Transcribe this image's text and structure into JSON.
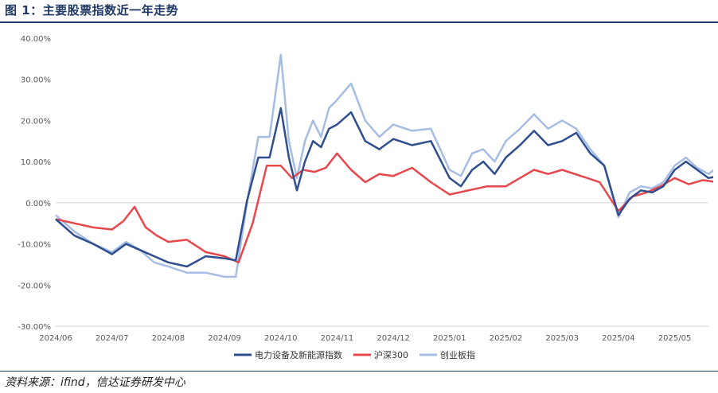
{
  "figure": {
    "title": "图 1：主要股票指数近一年走势",
    "source": "资料来源：ifind，信达证券研发中心"
  },
  "colors": {
    "title": "#1f3864",
    "power_index": "#2e4e8f",
    "hs300": "#e8474c",
    "chinext": "#a6bde3",
    "axis": "#d0d0d0",
    "tick_text": "#595959"
  },
  "chart_data": {
    "type": "line",
    "title": "",
    "xlabel": "",
    "ylabel": "",
    "ylim": [
      -30,
      40
    ],
    "yticks": [
      -30,
      -20,
      -10,
      0,
      10,
      20,
      30,
      40
    ],
    "ytick_labels": [
      "-30.00%",
      "-20.00%",
      "-10.00%",
      "0.00%",
      "10.00%",
      "20.00%",
      "30.00%",
      "40.00%"
    ],
    "grid": false,
    "legend_position": "bottom",
    "x_labels": [
      "2024/06",
      "2024/07",
      "2024/08",
      "2024/09",
      "2024/10",
      "2024/11",
      "2024/12",
      "2025/01",
      "2025/02",
      "2025/03",
      "2025/04",
      "2025/05"
    ],
    "x_range": [
      "2024/06",
      "2025/05"
    ],
    "series": [
      {
        "name": "电力设备及新能源指数",
        "key": "power_index",
        "points": [
          [
            "2024/06",
            -4.0
          ],
          [
            "2024/06",
            -8.0
          ],
          [
            "2024/06",
            -10.0
          ],
          [
            "2024/07",
            -12.5
          ],
          [
            "2024/07",
            -10.0
          ],
          [
            "2024/07",
            -11.5
          ],
          [
            "2024/07",
            -13.0
          ],
          [
            "2024/08",
            -14.5
          ],
          [
            "2024/08",
            -15.5
          ],
          [
            "2024/08",
            -13.0
          ],
          [
            "2024/09",
            -13.5
          ],
          [
            "2024/09",
            -14.0
          ],
          [
            "2024/09",
            0.5
          ],
          [
            "2024/09",
            11.0
          ],
          [
            "2024/09",
            11.0
          ],
          [
            "2024/10",
            23.0
          ],
          [
            "2024/10",
            11.0
          ],
          [
            "2024/10",
            3.0
          ],
          [
            "2024/10",
            10.0
          ],
          [
            "2024/10",
            15.0
          ],
          [
            "2024/10",
            13.5
          ],
          [
            "2024/10",
            18.0
          ],
          [
            "2024/11",
            19.0
          ],
          [
            "2024/11",
            22.0
          ],
          [
            "2024/11",
            15.0
          ],
          [
            "2024/11",
            13.0
          ],
          [
            "2024/12",
            15.5
          ],
          [
            "2024/12",
            14.0
          ],
          [
            "2024/12",
            15.0
          ],
          [
            "2025/01",
            6.0
          ],
          [
            "2025/01",
            4.0
          ],
          [
            "2025/01",
            8.0
          ],
          [
            "2025/01",
            10.0
          ],
          [
            "2025/01",
            7.0
          ],
          [
            "2025/02",
            11.0
          ],
          [
            "2025/02",
            14.0
          ],
          [
            "2025/02",
            17.5
          ],
          [
            "2025/02",
            14.0
          ],
          [
            "2025/03",
            15.0
          ],
          [
            "2025/03",
            17.0
          ],
          [
            "2025/03",
            12.0
          ],
          [
            "2025/03",
            9.0
          ],
          [
            "2025/04",
            -3.0
          ],
          [
            "2025/04",
            1.0
          ],
          [
            "2025/04",
            3.0
          ],
          [
            "2025/04",
            2.5
          ],
          [
            "2025/04",
            4.0
          ],
          [
            "2025/05",
            8.0
          ],
          [
            "2025/05",
            10.0
          ],
          [
            "2025/05",
            8.0
          ],
          [
            "2025/05",
            6.0
          ],
          [
            "2025/05",
            6.5
          ]
        ]
      },
      {
        "name": "沪深300",
        "key": "hs300",
        "points": [
          [
            "2024/06",
            -4.0
          ],
          [
            "2024/06",
            -5.0
          ],
          [
            "2024/06",
            -6.0
          ],
          [
            "2024/07",
            -6.5
          ],
          [
            "2024/07",
            -4.5
          ],
          [
            "2024/07",
            -1.0
          ],
          [
            "2024/07",
            -6.0
          ],
          [
            "2024/07",
            -8.0
          ],
          [
            "2024/08",
            -9.5
          ],
          [
            "2024/08",
            -9.0
          ],
          [
            "2024/08",
            -12.0
          ],
          [
            "2024/09",
            -13.0
          ],
          [
            "2024/09",
            -14.5
          ],
          [
            "2024/09",
            -5.0
          ],
          [
            "2024/09",
            9.0
          ],
          [
            "2024/10",
            9.0
          ],
          [
            "2024/10",
            6.0
          ],
          [
            "2024/10",
            8.0
          ],
          [
            "2024/10",
            7.5
          ],
          [
            "2024/10",
            8.5
          ],
          [
            "2024/11",
            12.0
          ],
          [
            "2024/11",
            8.0
          ],
          [
            "2024/11",
            5.0
          ],
          [
            "2024/11",
            7.0
          ],
          [
            "2024/12",
            6.5
          ],
          [
            "2024/12",
            8.5
          ],
          [
            "2024/12",
            5.0
          ],
          [
            "2025/01",
            2.0
          ],
          [
            "2025/01",
            3.0
          ],
          [
            "2025/01",
            4.0
          ],
          [
            "2025/02",
            4.0
          ],
          [
            "2025/02",
            6.0
          ],
          [
            "2025/02",
            8.0
          ],
          [
            "2025/02",
            7.0
          ],
          [
            "2025/03",
            8.0
          ],
          [
            "2025/03",
            6.5
          ],
          [
            "2025/03",
            5.0
          ],
          [
            "2025/04",
            -2.0
          ],
          [
            "2025/04",
            1.5
          ],
          [
            "2025/04",
            2.5
          ],
          [
            "2025/04",
            4.0
          ],
          [
            "2025/05",
            6.0
          ],
          [
            "2025/05",
            4.5
          ],
          [
            "2025/05",
            5.5
          ],
          [
            "2025/05",
            5.0
          ]
        ]
      },
      {
        "name": "创业板指",
        "key": "chinext",
        "points": [
          [
            "2024/06",
            -3.0
          ],
          [
            "2024/06",
            -7.0
          ],
          [
            "2024/06",
            -10.0
          ],
          [
            "2024/07",
            -12.0
          ],
          [
            "2024/07",
            -9.5
          ],
          [
            "2024/07",
            -11.5
          ],
          [
            "2024/07",
            -14.5
          ],
          [
            "2024/08",
            -15.5
          ],
          [
            "2024/08",
            -17.0
          ],
          [
            "2024/08",
            -17.0
          ],
          [
            "2024/09",
            -18.0
          ],
          [
            "2024/09",
            -18.0
          ],
          [
            "2024/09",
            0.0
          ],
          [
            "2024/09",
            16.0
          ],
          [
            "2024/09",
            16.0
          ],
          [
            "2024/10",
            36.0
          ],
          [
            "2024/10",
            15.0
          ],
          [
            "2024/10",
            6.0
          ],
          [
            "2024/10",
            15.0
          ],
          [
            "2024/10",
            20.0
          ],
          [
            "2024/10",
            16.0
          ],
          [
            "2024/10",
            23.0
          ],
          [
            "2024/11",
            25.0
          ],
          [
            "2024/11",
            29.0
          ],
          [
            "2024/11",
            20.0
          ],
          [
            "2024/11",
            16.0
          ],
          [
            "2024/12",
            19.0
          ],
          [
            "2024/12",
            17.5
          ],
          [
            "2024/12",
            18.0
          ],
          [
            "2025/01",
            8.0
          ],
          [
            "2025/01",
            6.5
          ],
          [
            "2025/01",
            12.0
          ],
          [
            "2025/01",
            13.0
          ],
          [
            "2025/01",
            10.0
          ],
          [
            "2025/02",
            15.0
          ],
          [
            "2025/02",
            18.0
          ],
          [
            "2025/02",
            21.5
          ],
          [
            "2025/02",
            18.0
          ],
          [
            "2025/03",
            20.0
          ],
          [
            "2025/03",
            18.0
          ],
          [
            "2025/03",
            13.0
          ],
          [
            "2025/03",
            9.0
          ],
          [
            "2025/04",
            -3.5
          ],
          [
            "2025/04",
            2.5
          ],
          [
            "2025/04",
            4.0
          ],
          [
            "2025/04",
            3.5
          ],
          [
            "2025/04",
            5.0
          ],
          [
            "2025/05",
            9.0
          ],
          [
            "2025/05",
            11.0
          ],
          [
            "2025/05",
            8.5
          ],
          [
            "2025/05",
            7.0
          ],
          [
            "2025/05",
            9.0
          ]
        ]
      }
    ]
  }
}
